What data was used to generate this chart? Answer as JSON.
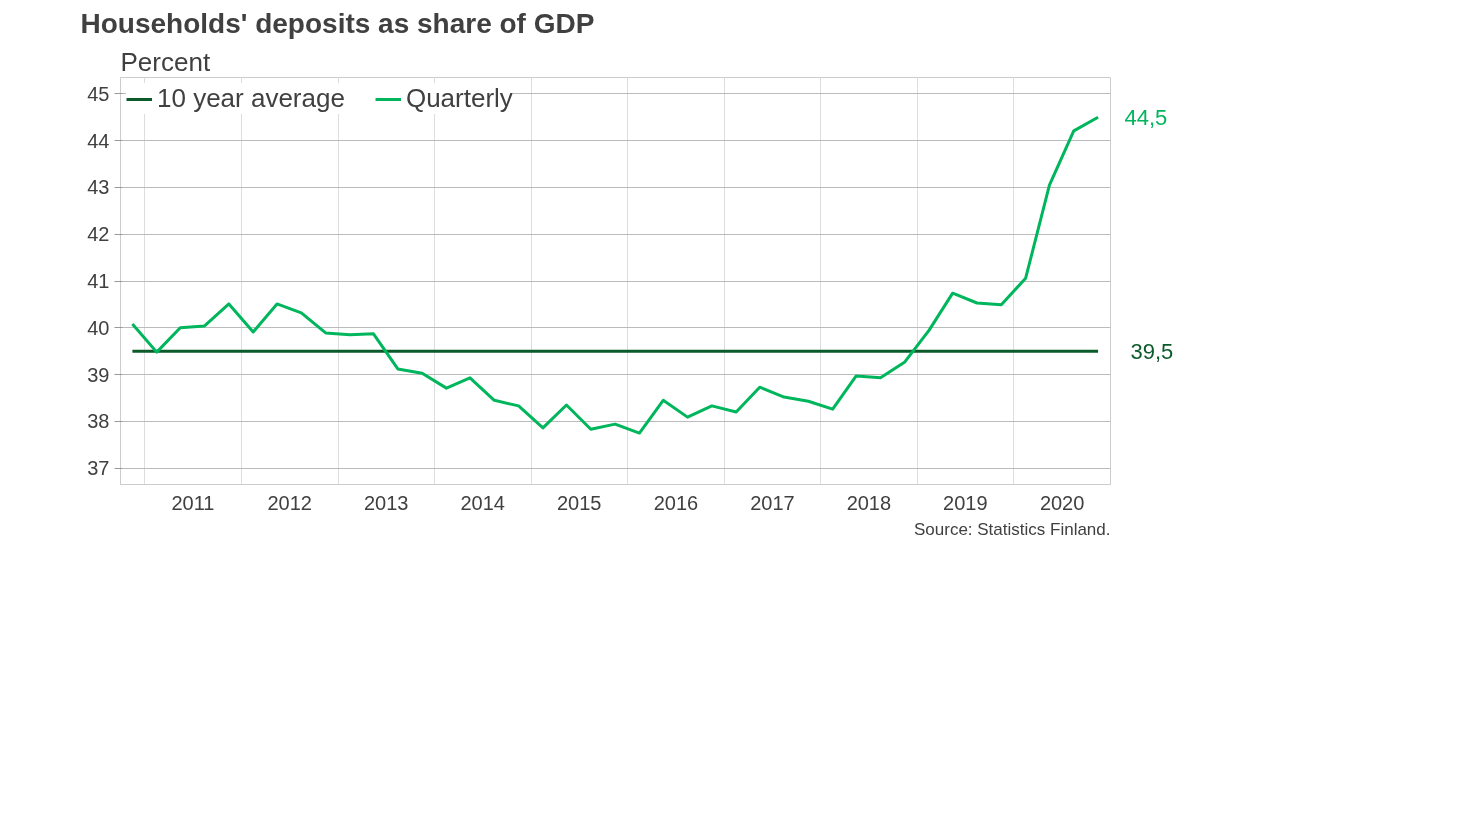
{
  "chart_data": {
    "type": "line",
    "title": "Households' deposits as share of GDP",
    "ylabel": "Percent",
    "x": [
      "2010-11-15",
      "2011-02-15",
      "2011-05-15",
      "2011-08-15",
      "2011-11-15",
      "2012-02-15",
      "2012-05-15",
      "2012-08-15",
      "2012-11-15",
      "2013-02-15",
      "2013-05-15",
      "2013-08-15",
      "2013-11-15",
      "2014-02-15",
      "2014-05-15",
      "2014-08-15",
      "2014-11-15",
      "2015-02-15",
      "2015-05-15",
      "2015-08-15",
      "2015-11-15",
      "2016-02-15",
      "2016-05-15",
      "2016-08-15",
      "2016-11-15",
      "2017-02-15",
      "2017-05-15",
      "2017-08-15",
      "2017-11-15",
      "2018-02-15",
      "2018-05-15",
      "2018-08-15",
      "2018-11-15",
      "2019-02-15",
      "2019-05-15",
      "2019-08-15",
      "2019-11-15",
      "2020-02-15",
      "2020-05-15",
      "2020-08-15",
      "2020-11-15"
    ],
    "series": [
      {
        "name": "10 year average",
        "color": "#0b5a2a",
        "x": [
          "2010-11-15",
          "2020-11-15"
        ],
        "values": [
          39.5,
          39.5
        ],
        "value_labels": [
          null,
          "39,5"
        ]
      },
      {
        "name": "Quarterly",
        "color": "#00b65c",
        "values": [
          40.08,
          39.48,
          40.0,
          40.04,
          40.51,
          39.91,
          40.51,
          40.32,
          39.89,
          39.85,
          39.87,
          39.12,
          39.03,
          38.71,
          38.93,
          38.45,
          38.33,
          37.86,
          38.35,
          37.83,
          37.94,
          37.75,
          38.45,
          38.09,
          38.33,
          38.2,
          38.73,
          38.52,
          38.43,
          38.26,
          38.97,
          38.93,
          39.27,
          39.95,
          40.74,
          40.53,
          40.49,
          41.06,
          43.05,
          44.21,
          44.5
        ],
        "value_labels": [
          null,
          null,
          null,
          null,
          null,
          null,
          null,
          null,
          null,
          null,
          null,
          null,
          null,
          null,
          null,
          null,
          null,
          null,
          null,
          null,
          null,
          null,
          null,
          null,
          null,
          null,
          null,
          null,
          null,
          null,
          null,
          null,
          null,
          null,
          null,
          null,
          null,
          null,
          null,
          null,
          "44,5"
        ]
      }
    ],
    "xlim": [
      "2010-10-01",
      "2021-01-01"
    ],
    "xticks": [
      {
        "value": "2011-01-01",
        "label": null
      },
      {
        "value": "2011-07-02",
        "label": "2011"
      },
      {
        "value": "2012-01-01",
        "label": null
      },
      {
        "value": "2012-07-02",
        "label": "2012"
      },
      {
        "value": "2013-01-01",
        "label": null
      },
      {
        "value": "2013-07-02",
        "label": "2013"
      },
      {
        "value": "2014-01-01",
        "label": null
      },
      {
        "value": "2014-07-02",
        "label": "2014"
      },
      {
        "value": "2015-01-01",
        "label": null
      },
      {
        "value": "2015-07-02",
        "label": "2015"
      },
      {
        "value": "2016-01-01",
        "label": null
      },
      {
        "value": "2016-07-02",
        "label": "2016"
      },
      {
        "value": "2017-01-01",
        "label": null
      },
      {
        "value": "2017-07-02",
        "label": "2017"
      },
      {
        "value": "2018-01-01",
        "label": null
      },
      {
        "value": "2018-07-02",
        "label": "2018"
      },
      {
        "value": "2019-01-01",
        "label": null
      },
      {
        "value": "2019-07-02",
        "label": "2019"
      },
      {
        "value": "2020-01-01",
        "label": null
      },
      {
        "value": "2020-07-02",
        "label": "2020"
      }
    ],
    "ylim": [
      36.65,
      45.35
    ],
    "yticks": [
      37,
      38,
      39,
      40,
      41,
      42,
      43,
      44,
      45
    ],
    "grid": true,
    "legend": "top left",
    "marker": "none",
    "line_style": "solid",
    "annotations": [
      "Source: Statistics Finland."
    ]
  }
}
